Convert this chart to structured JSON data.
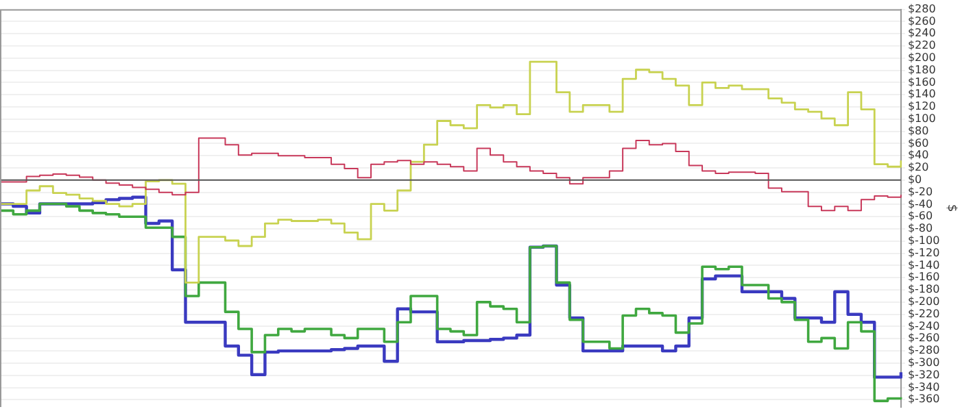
{
  "chart_data": {
    "type": "step",
    "ylabel": "$",
    "categories": [
      null,
      null,
      null,
      null,
      null,
      null,
      null,
      null,
      null,
      null,
      null,
      null,
      null,
      null,
      null,
      null,
      null,
      null,
      null,
      null,
      null,
      null,
      null,
      null,
      null,
      null,
      null,
      null,
      null,
      null,
      null,
      null,
      null,
      null,
      null,
      null,
      null,
      null,
      null,
      null,
      null,
      null,
      null,
      null,
      null,
      null,
      null,
      null,
      null,
      null,
      null,
      null,
      null,
      null,
      null,
      null,
      null,
      null,
      null,
      null,
      null,
      null,
      null,
      null,
      null,
      null,
      null,
      null,
      null
    ],
    "series": [
      {
        "color": "#c8385a",
        "values": [
          -3,
          -3,
          6,
          8,
          10,
          8,
          5,
          0,
          -5,
          -8,
          -12,
          -15,
          -20,
          -24,
          -20,
          69,
          69,
          58,
          41,
          44,
          44,
          40,
          40,
          37,
          37,
          26,
          19,
          4,
          26,
          30,
          32,
          26,
          30,
          26,
          22,
          15,
          52,
          41,
          30,
          22,
          15,
          11,
          4,
          -6,
          4,
          4,
          15,
          52,
          65,
          58,
          60,
          47,
          24,
          15,
          11,
          13,
          13,
          11,
          -13,
          -19,
          -19,
          -43,
          -50,
          -43,
          -50,
          -32,
          -26,
          -28,
          -24
        ]
      },
      {
        "color": "#c8d250",
        "values": [
          -39,
          -39,
          -17,
          -10,
          -21,
          -24,
          -30,
          -34,
          -39,
          -43,
          -39,
          -2,
          0,
          -6,
          -168,
          -93,
          -93,
          -99,
          -108,
          -93,
          -71,
          -65,
          -67,
          -67,
          -65,
          -71,
          -86,
          -97,
          -39,
          -50,
          -17,
          30,
          58,
          97,
          90,
          85,
          123,
          119,
          123,
          108,
          194,
          194,
          144,
          112,
          123,
          123,
          112,
          166,
          181,
          177,
          166,
          155,
          123,
          160,
          151,
          155,
          149,
          149,
          134,
          127,
          116,
          112,
          101,
          90,
          144,
          116,
          26,
          22,
          32
        ]
      },
      {
        "color": "#40a840",
        "values": [
          -50,
          -56,
          -50,
          -39,
          -39,
          -43,
          -50,
          -54,
          -56,
          -60,
          -60,
          -78,
          -78,
          -93,
          -190,
          -168,
          -168,
          -216,
          -244,
          -282,
          -254,
          -244,
          -248,
          -244,
          -244,
          -254,
          -259,
          -244,
          -244,
          -265,
          -233,
          -190,
          -190,
          -244,
          -248,
          -254,
          -200,
          -207,
          -211,
          -233,
          -110,
          -108,
          -168,
          -229,
          -265,
          -265,
          -276,
          -222,
          -211,
          -218,
          -222,
          -250,
          -235,
          -142,
          -146,
          -142,
          -172,
          -172,
          -194,
          -200,
          -229,
          -265,
          -259,
          -276,
          -233,
          -248,
          -362,
          -358,
          -356
        ]
      },
      {
        "color": "#3a3ac0",
        "values": [
          -39,
          -43,
          -54,
          -39,
          -39,
          -39,
          -39,
          -37,
          -32,
          -30,
          -28,
          -71,
          -67,
          -147,
          -233,
          -233,
          -233,
          -272,
          -287,
          -319,
          -282,
          -280,
          -280,
          -280,
          -280,
          -278,
          -276,
          -272,
          -272,
          -297,
          -211,
          -216,
          -216,
          -265,
          -265,
          -263,
          -263,
          -261,
          -259,
          -254,
          -110,
          -108,
          -172,
          -226,
          -280,
          -280,
          -280,
          -272,
          -272,
          -272,
          -280,
          -272,
          -226,
          -162,
          -157,
          -157,
          -183,
          -183,
          -183,
          -194,
          -226,
          -226,
          -233,
          -183,
          -220,
          -233,
          -323,
          -323,
          -315
        ]
      }
    ],
    "ylim": [
      -372,
      280
    ],
    "yticks": [
      {
        "value": -360,
        "label": "$-360"
      },
      {
        "value": -340,
        "label": "$-340"
      },
      {
        "value": -320,
        "label": "$-320"
      },
      {
        "value": -300,
        "label": "$-300"
      },
      {
        "value": -280,
        "label": "$-280"
      },
      {
        "value": -260,
        "label": "$-260"
      },
      {
        "value": -240,
        "label": "$-240"
      },
      {
        "value": -220,
        "label": "$-220"
      },
      {
        "value": -200,
        "label": "$-200"
      },
      {
        "value": -180,
        "label": "$-180"
      },
      {
        "value": -160,
        "label": "$-160"
      },
      {
        "value": -140,
        "label": "$-140"
      },
      {
        "value": -120,
        "label": "$-120"
      },
      {
        "value": -100,
        "label": "$-100"
      },
      {
        "value": -80,
        "label": "$-80"
      },
      {
        "value": -60,
        "label": "$-60"
      },
      {
        "value": -40,
        "label": "$-40"
      },
      {
        "value": -20,
        "label": "$-20"
      },
      {
        "value": 0,
        "label": "$0"
      },
      {
        "value": 20,
        "label": "$20"
      },
      {
        "value": 40,
        "label": "$40"
      },
      {
        "value": 60,
        "label": "$60"
      },
      {
        "value": 80,
        "label": "$80"
      },
      {
        "value": 100,
        "label": "$100"
      },
      {
        "value": 120,
        "label": "$120"
      },
      {
        "value": 140,
        "label": "$140"
      },
      {
        "value": 160,
        "label": "$160"
      },
      {
        "value": 180,
        "label": "$180"
      },
      {
        "value": 200,
        "label": "$200"
      },
      {
        "value": 220,
        "label": "$220"
      },
      {
        "value": 240,
        "label": "$240"
      },
      {
        "value": 260,
        "label": "$260"
      },
      {
        "value": 280,
        "label": "$280"
      }
    ],
    "ref_lines": [
      {
        "axis": "y",
        "value": 0,
        "color": "#555555"
      }
    ],
    "grid": "y",
    "legend": false,
    "tick_labels": "y"
  }
}
